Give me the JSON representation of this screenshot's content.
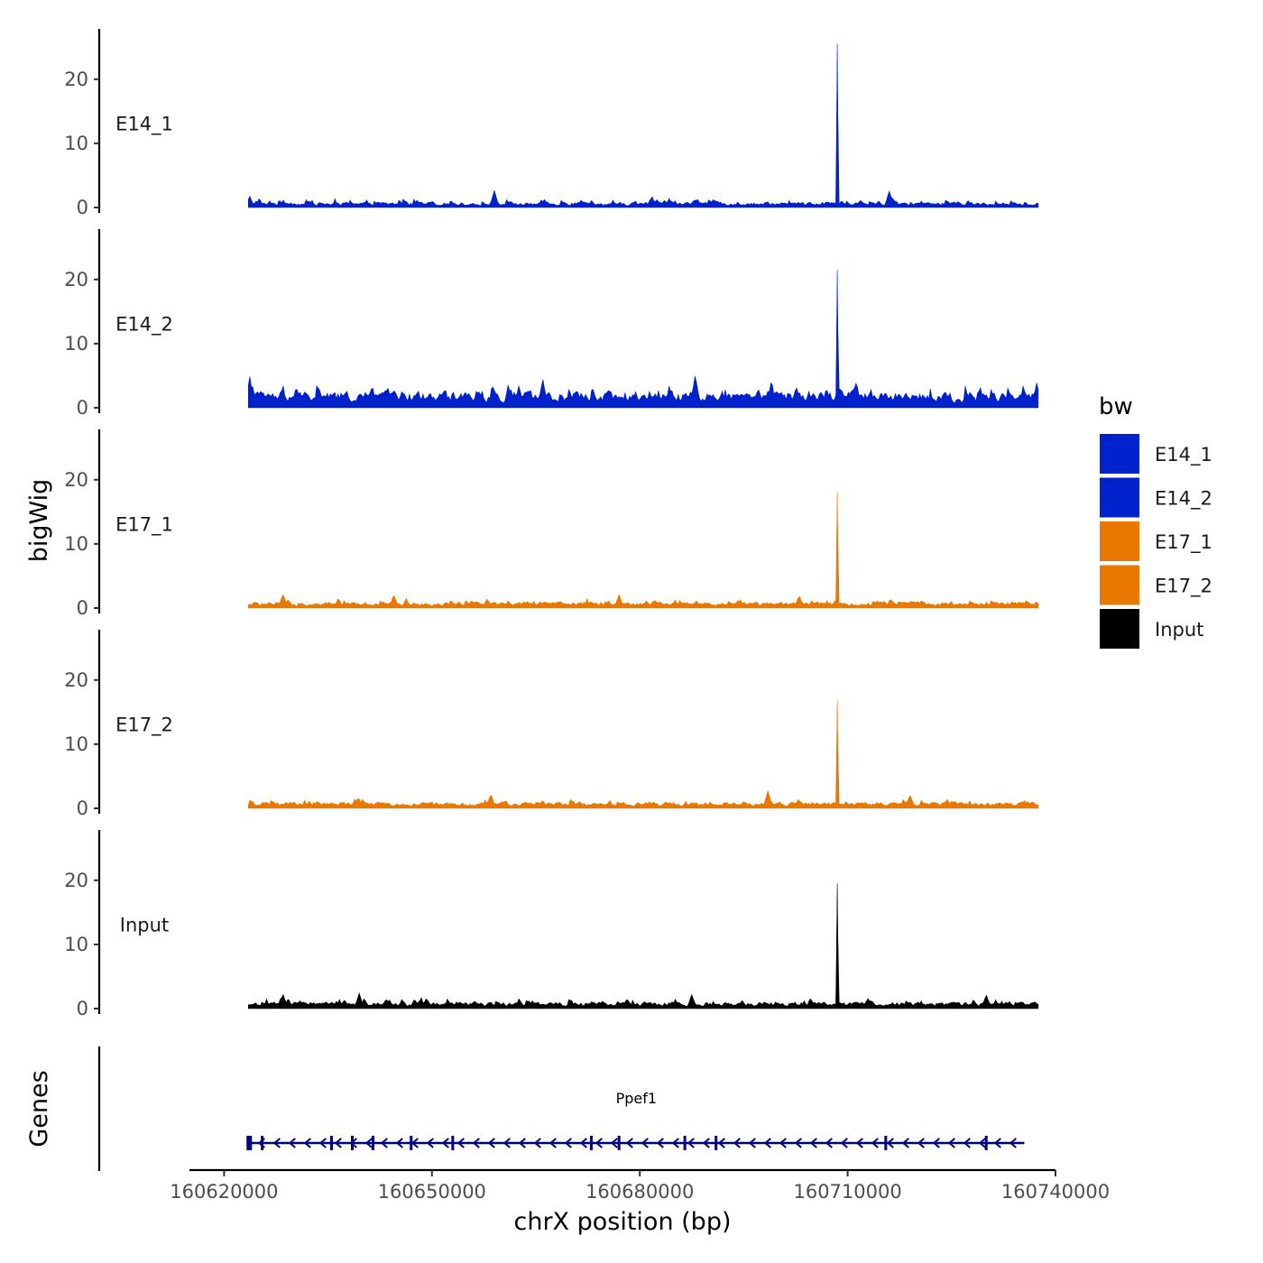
{
  "chart_data": {
    "type": "area",
    "xlabel": "chrX position (bp)",
    "ylabel": "bigWig",
    "genes_label": "Genes",
    "xlim": [
      160615000,
      160740000
    ],
    "x_ticks": [
      160620000,
      160650000,
      160680000,
      160710000,
      160740000
    ],
    "x_tick_labels": [
      "160620000",
      "160650000",
      "160680000",
      "160710000",
      "160740000"
    ],
    "data_range": [
      160623500,
      160737500
    ],
    "ylim": [
      0,
      27
    ],
    "y_ticks": [
      0,
      10,
      20
    ],
    "y_tick_labels": [
      "0",
      "10",
      "20"
    ],
    "grid": false,
    "legend": {
      "title": "bw",
      "placement": "right",
      "entries": [
        {
          "label": "E14_1",
          "color": "#0022CC"
        },
        {
          "label": "E14_2",
          "color": "#0022CC"
        },
        {
          "label": "E17_1",
          "color": "#E87800"
        },
        {
          "label": "E17_2",
          "color": "#E87800"
        },
        {
          "label": "Input",
          "color": "#000000"
        }
      ]
    },
    "series": [
      {
        "name": "E14_1",
        "color": "#0022CC",
        "baseline": 0.7,
        "noise": 1.2,
        "peak_x": 160708500,
        "peak_y": 25.5,
        "bumps": [
          [
            160623700,
            1.8
          ],
          [
            160659000,
            2.7
          ],
          [
            160716000,
            2.6
          ]
        ]
      },
      {
        "name": "E14_2",
        "color": "#0022CC",
        "baseline": 2.2,
        "noise": 2.6,
        "peak_x": 160708500,
        "peak_y": 21.5,
        "bumps": [
          [
            160623700,
            5.0
          ],
          [
            160666000,
            4.6
          ],
          [
            160688000,
            5.3
          ],
          [
            160699000,
            4.4
          ],
          [
            160737300,
            4.0
          ]
        ]
      },
      {
        "name": "E17_1",
        "color": "#E87800",
        "baseline": 0.8,
        "noise": 1.1,
        "peak_x": 160708500,
        "peak_y": 18.0,
        "bumps": [
          [
            160628500,
            2.2
          ],
          [
            160644500,
            2.1
          ],
          [
            160677000,
            2.1
          ],
          [
            160703000,
            2.0
          ]
        ]
      },
      {
        "name": "E17_2",
        "color": "#E87800",
        "baseline": 0.8,
        "noise": 1.1,
        "peak_x": 160708500,
        "peak_y": 16.8,
        "bumps": [
          [
            160658500,
            2.3
          ],
          [
            160698500,
            2.8
          ],
          [
            160719000,
            2.2
          ]
        ]
      },
      {
        "name": "Input",
        "color": "#000000",
        "baseline": 0.9,
        "noise": 1.2,
        "peak_x": 160708500,
        "peak_y": 19.5,
        "bumps": [
          [
            160628500,
            2.3
          ],
          [
            160639500,
            2.4
          ],
          [
            160687500,
            2.2
          ],
          [
            160730000,
            2.2
          ]
        ]
      }
    ],
    "gene": {
      "name": "Ppef1",
      "start": 160623500,
      "end": 160735500,
      "strand": "-",
      "color": "#000080",
      "exons": [
        160623700,
        160625500,
        160635500,
        160638500,
        160641500,
        160647000,
        160653000,
        160673000,
        160677000,
        160686500,
        160691000,
        160715500,
        160730000
      ]
    }
  }
}
